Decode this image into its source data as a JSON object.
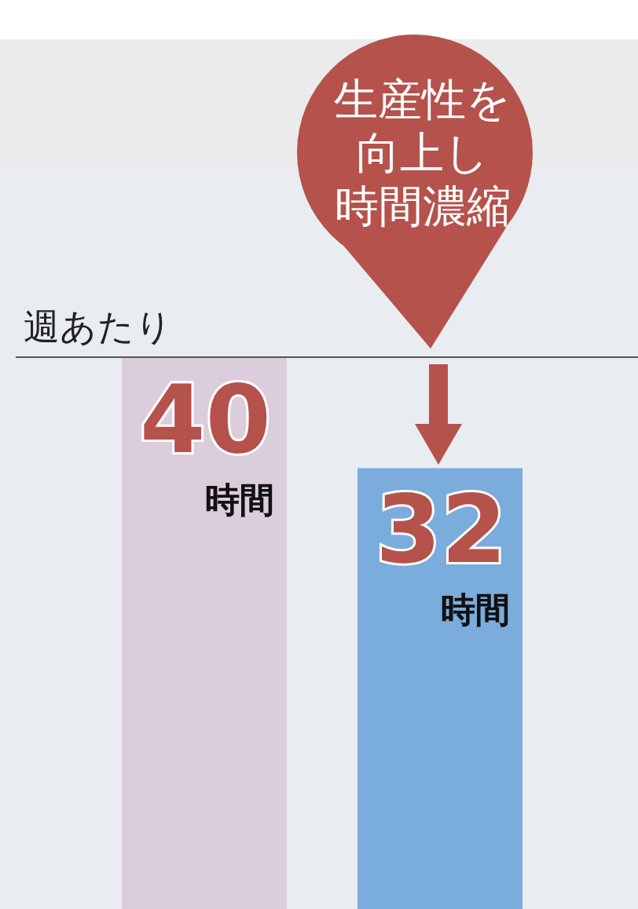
{
  "chart_data": {
    "type": "bar",
    "title": "週あたり",
    "categories": [
      null,
      null
    ],
    "values": [
      40,
      32
    ],
    "colors": [
      "#dccddc",
      "#7aacdc"
    ],
    "value_labels": [
      "40\n時間",
      "32\n時間"
    ],
    "annotations": [
      "生産性を向上し時間濃縮"
    ]
  }
}
